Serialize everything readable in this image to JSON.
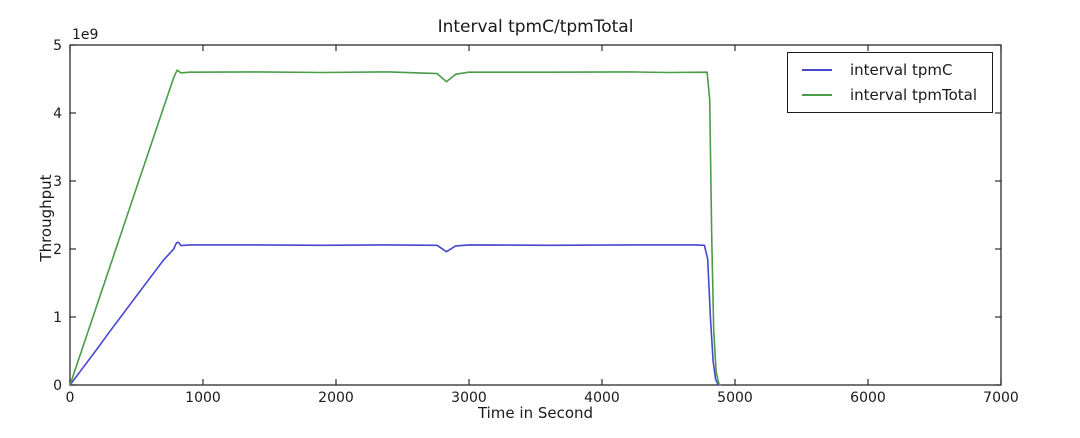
{
  "chart_data": {
    "type": "line",
    "title": "Interval tpmC/tpmTotal",
    "xlabel": "Time in Second",
    "ylabel": "Throughput",
    "y_scale_offset_label": "1e9",
    "xlim": [
      0,
      7000
    ],
    "ylim": [
      0,
      5000000000
    ],
    "xticks": [
      0,
      1000,
      2000,
      3000,
      4000,
      5000,
      6000,
      7000
    ],
    "xtick_labels": [
      "0",
      "1000",
      "2000",
      "3000",
      "4000",
      "5000",
      "6000",
      "7000"
    ],
    "yticks": [
      0,
      1000000000,
      2000000000,
      3000000000,
      4000000000,
      5000000000
    ],
    "ytick_labels": [
      "0",
      "1",
      "2",
      "3",
      "4",
      "5"
    ],
    "grid": false,
    "legend_position": "upper right",
    "axis_color": "#2b2b2b",
    "background": "#ffffff",
    "series": [
      {
        "name": "interval tpmC",
        "color": "#4747cd",
        "points": [
          [
            0,
            0
          ],
          [
            100,
            260000000
          ],
          [
            200,
            520000000
          ],
          [
            300,
            790000000
          ],
          [
            400,
            1050000000
          ],
          [
            500,
            1310000000
          ],
          [
            600,
            1570000000
          ],
          [
            700,
            1830000000
          ],
          [
            780,
            2000000000
          ],
          [
            800,
            2090000000
          ],
          [
            815,
            2100000000
          ],
          [
            835,
            2050000000
          ],
          [
            900,
            2060000000
          ],
          [
            1400,
            2060000000
          ],
          [
            1900,
            2055000000
          ],
          [
            2400,
            2060000000
          ],
          [
            2760,
            2055000000
          ],
          [
            2830,
            1960000000
          ],
          [
            2900,
            2045000000
          ],
          [
            3000,
            2060000000
          ],
          [
            3600,
            2055000000
          ],
          [
            4200,
            2060000000
          ],
          [
            4700,
            2060000000
          ],
          [
            4770,
            2055000000
          ],
          [
            4795,
            1850000000
          ],
          [
            4815,
            1000000000
          ],
          [
            4835,
            350000000
          ],
          [
            4855,
            80000000
          ],
          [
            4875,
            0
          ]
        ]
      },
      {
        "name": "interval tpmTotal",
        "color": "#4a9b4a",
        "points": [
          [
            0,
            0
          ],
          [
            100,
            580000000
          ],
          [
            200,
            1160000000
          ],
          [
            300,
            1740000000
          ],
          [
            400,
            2320000000
          ],
          [
            500,
            2900000000
          ],
          [
            600,
            3480000000
          ],
          [
            700,
            4060000000
          ],
          [
            780,
            4520000000
          ],
          [
            805,
            4630000000
          ],
          [
            835,
            4590000000
          ],
          [
            900,
            4600000000
          ],
          [
            1400,
            4605000000
          ],
          [
            1900,
            4595000000
          ],
          [
            2400,
            4605000000
          ],
          [
            2760,
            4580000000
          ],
          [
            2830,
            4460000000
          ],
          [
            2900,
            4570000000
          ],
          [
            3000,
            4600000000
          ],
          [
            3600,
            4600000000
          ],
          [
            4200,
            4605000000
          ],
          [
            4500,
            4595000000
          ],
          [
            4790,
            4600000000
          ],
          [
            4810,
            4200000000
          ],
          [
            4825,
            2200000000
          ],
          [
            4840,
            800000000
          ],
          [
            4858,
            200000000
          ],
          [
            4878,
            20000000
          ],
          [
            4888,
            0
          ]
        ]
      }
    ]
  }
}
